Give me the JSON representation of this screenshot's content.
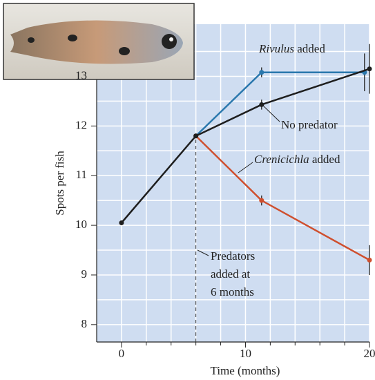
{
  "chart_data": {
    "type": "line",
    "x_label": "Time (months)",
    "y_label": "Spots per fish",
    "xlim": [
      -2,
      20
    ],
    "ylim": [
      7.65,
      14.05
    ],
    "xticks": [
      0,
      10,
      20
    ],
    "yticks": [
      8,
      9,
      10,
      11,
      12,
      13
    ],
    "x_grid": [
      2,
      4,
      6,
      8,
      12,
      14,
      16,
      18
    ],
    "y_grid": [
      8.5,
      9.5,
      10.5,
      11.5,
      12.5,
      13.5
    ],
    "grid": true,
    "series": [
      {
        "name": "No predator",
        "color": "#1e1e1e",
        "x": [
          0,
          6,
          11.3,
          20
        ],
        "values": [
          10.05,
          11.8,
          12.43,
          13.15
        ],
        "errors": [
          null,
          null,
          0.1,
          0.5
        ]
      },
      {
        "name_italic": "Rivulus",
        "name": "added",
        "color": "#2a78ad",
        "x": [
          6,
          11.3,
          19.6
        ],
        "values": [
          11.8,
          13.08,
          13.08
        ],
        "errors": [
          null,
          0.1,
          0.38
        ]
      },
      {
        "name_italic": "Crenicichla",
        "name": "added",
        "color": "#cf4f2e",
        "x": [
          6,
          11.3,
          20
        ],
        "values": [
          11.8,
          10.5,
          9.3
        ],
        "errors": [
          null,
          0.1,
          0.3
        ]
      }
    ],
    "annotation": {
      "lines": [
        "Predators",
        "added at",
        "6 months"
      ],
      "x": 6
    }
  }
}
